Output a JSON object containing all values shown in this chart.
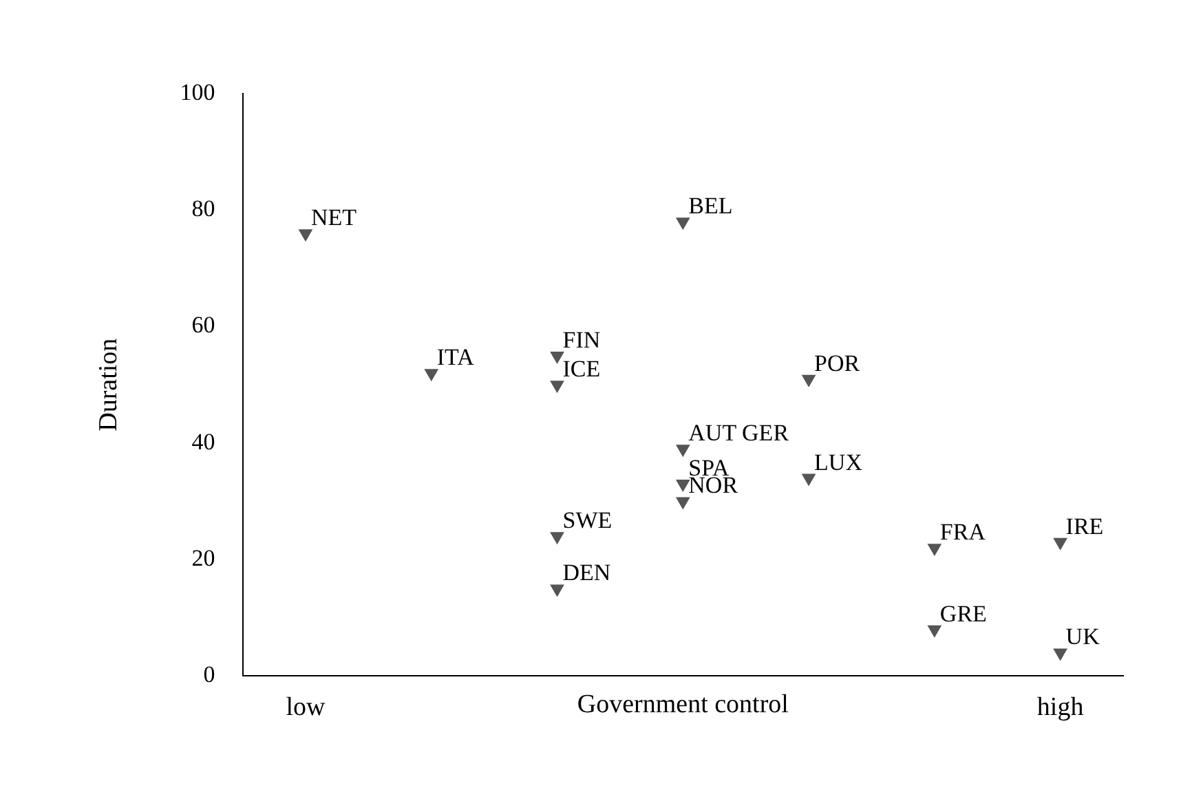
{
  "chart_data": {
    "type": "scatter",
    "xlabel": "Government control",
    "ylabel": "Duration",
    "categories": [
      "low",
      null,
      null,
      null,
      null,
      null,
      "high"
    ],
    "series": [
      {
        "color": "#555555",
        "values": [
          76,
          52,
          55,
          78,
          51,
          22,
          23
        ],
        "value_labels": [
          "NET",
          "ITA",
          "FIN",
          "BEL",
          "POR",
          "FRA",
          "IRE"
        ]
      },
      {
        "color": "#555555",
        "values": [
          null,
          null,
          50,
          39,
          34,
          8,
          4
        ],
        "value_labels": [
          null,
          null,
          "ICE",
          "AUT GER",
          "LUX",
          "GRE",
          "UK"
        ]
      },
      {
        "color": "#555555",
        "values": [
          null,
          null,
          24,
          33,
          null,
          null,
          null
        ],
        "value_labels": [
          null,
          null,
          "SWE",
          "SPA",
          null,
          null,
          null
        ]
      },
      {
        "color": "#555555",
        "values": [
          null,
          null,
          15,
          30,
          null,
          null,
          null
        ],
        "value_labels": [
          null,
          null,
          "DEN",
          "NOR",
          null,
          null,
          null
        ]
      }
    ],
    "ylim": [
      0,
      100
    ],
    "yticks": [
      0,
      20,
      40,
      60,
      80,
      100
    ],
    "grid": false,
    "legend": false,
    "marker": "triangle"
  }
}
